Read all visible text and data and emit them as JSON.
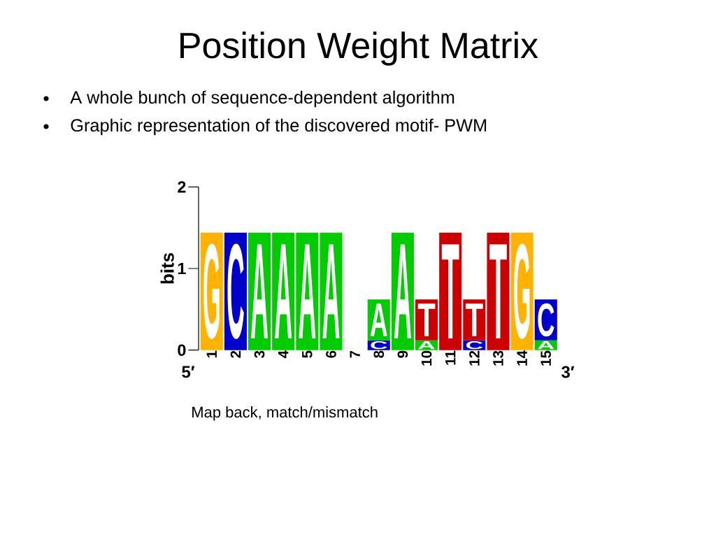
{
  "chart_data": {
    "type": "bar",
    "title": "Position Weight Matrix",
    "ylabel": "bits",
    "stacked": true,
    "categories": [
      "1",
      "2",
      "3",
      "4",
      "5",
      "6",
      "7",
      "8",
      "9",
      "10",
      "11",
      "12",
      "13",
      "14",
      "15"
    ],
    "series": [
      {
        "name": "C",
        "color": "#0000cc",
        "values": [
          null,
          1.44,
          null,
          null,
          null,
          null,
          null,
          0.12,
          null,
          null,
          null,
          0.12,
          null,
          null,
          null
        ]
      },
      {
        "name": "A",
        "color": "#00cc00",
        "values": [
          null,
          null,
          1.44,
          1.44,
          1.44,
          1.44,
          null,
          0.5,
          1.44,
          0.12,
          null,
          null,
          null,
          null,
          0.12
        ]
      },
      {
        "name": "G",
        "color": "#ffb300",
        "values": [
          1.44,
          null,
          null,
          null,
          null,
          null,
          null,
          null,
          null,
          null,
          null,
          null,
          null,
          1.44,
          null
        ]
      },
      {
        "name": "T",
        "color": "#cc0000",
        "values": [
          null,
          null,
          null,
          null,
          null,
          null,
          null,
          null,
          null,
          0.5,
          1.44,
          0.5,
          1.44,
          null,
          null
        ]
      },
      {
        "name": "C",
        "color": "#0000cc",
        "values": [
          null,
          null,
          null,
          null,
          null,
          null,
          null,
          null,
          null,
          null,
          null,
          null,
          null,
          null,
          0.5
        ]
      }
    ],
    "ylim": [
      0,
      2
    ],
    "yticks": [
      0,
      1,
      2
    ],
    "annotations": [
      "A whole bunch of sequence-dependent algorithm",
      "Graphic representation of the discovered motif- PWM",
      "Map back, match/mismatch",
      "5′",
      "3′"
    ]
  }
}
